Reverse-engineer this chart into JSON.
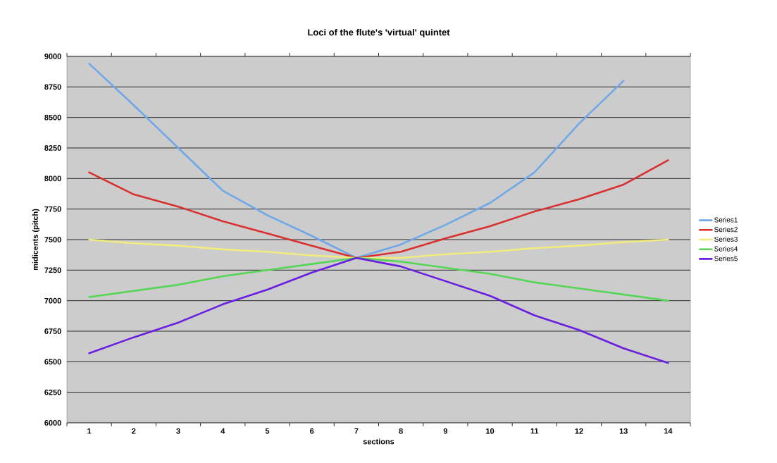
{
  "chart_data": {
    "type": "line",
    "title": "Loci of the flute's 'virtual' quintet",
    "xlabel": "sections",
    "ylabel": "midicents (pitch)",
    "categories": [
      "1",
      "2",
      "3",
      "4",
      "5",
      "6",
      "7",
      "8",
      "9",
      "10",
      "11",
      "12",
      "13",
      "14"
    ],
    "series": [
      {
        "name": "Series1",
        "color": "#6fa8e8",
        "values": [
          8940,
          8600,
          8250,
          7900,
          7700,
          7530,
          7350,
          7460,
          7620,
          7800,
          8050,
          8450,
          8800,
          null
        ]
      },
      {
        "name": "Series2",
        "color": "#d9302f",
        "values": [
          8050,
          7870,
          7770,
          7650,
          7550,
          7450,
          7350,
          7400,
          7510,
          7610,
          7730,
          7830,
          7950,
          8150
        ]
      },
      {
        "name": "Series3",
        "color": "#f2ec7e",
        "values": [
          7500,
          7470,
          7450,
          7420,
          7400,
          7370,
          7350,
          7350,
          7380,
          7400,
          7430,
          7450,
          7480,
          7500
        ]
      },
      {
        "name": "Series4",
        "color": "#55d655",
        "values": [
          7030,
          7080,
          7130,
          7200,
          7250,
          7300,
          7350,
          7320,
          7270,
          7220,
          7150,
          7100,
          7050,
          7000
        ]
      },
      {
        "name": "Series5",
        "color": "#6a1ee0",
        "values": [
          6570,
          6700,
          6820,
          6970,
          7090,
          7230,
          7350,
          7280,
          7160,
          7040,
          6880,
          6760,
          6610,
          6490
        ]
      }
    ],
    "ylim": [
      6000,
      9000
    ],
    "yticks": [
      6000,
      6250,
      6500,
      6750,
      7000,
      7250,
      7500,
      7750,
      8000,
      8250,
      8500,
      8750,
      9000
    ],
    "grid": "y",
    "legend": "right",
    "line_style": "solid",
    "marker": "none"
  }
}
